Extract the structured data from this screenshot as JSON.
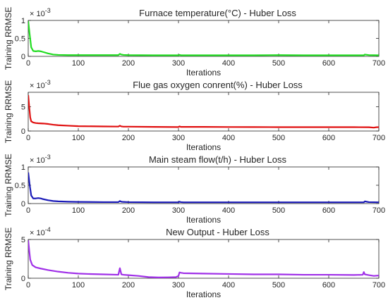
{
  "chart_data": [
    {
      "type": "line",
      "title": "Furnace temperature(°C) - Huber Loss",
      "xlabel": "Iterations",
      "ylabel": "Training RRMSE",
      "y_multiplier_base": "× 10",
      "y_multiplier_exp": "-3",
      "xlim": [
        0,
        700
      ],
      "ylim": [
        0,
        1
      ],
      "x_ticks": [
        "0",
        "100",
        "200",
        "300",
        "400",
        "500",
        "600",
        "700"
      ],
      "y_ticks": [
        "0",
        "0.5",
        "1"
      ],
      "series_color": "#22dd22",
      "x": [
        0,
        3,
        6,
        10,
        15,
        20,
        25,
        30,
        40,
        50,
        60,
        80,
        100,
        150,
        180,
        183,
        186,
        190,
        200,
        250,
        300,
        302,
        305,
        310,
        350,
        400,
        450,
        500,
        550,
        600,
        650,
        670,
        672,
        680,
        700
      ],
      "y": [
        0.98,
        0.6,
        0.25,
        0.15,
        0.14,
        0.15,
        0.14,
        0.12,
        0.08,
        0.05,
        0.04,
        0.035,
        0.035,
        0.035,
        0.035,
        0.07,
        0.05,
        0.04,
        0.035,
        0.03,
        0.03,
        0.04,
        0.03,
        0.03,
        0.03,
        0.03,
        0.03,
        0.035,
        0.03,
        0.03,
        0.03,
        0.03,
        0.05,
        0.035,
        0.03
      ]
    },
    {
      "type": "line",
      "title": "Flue gas oxygen conrent(%) - Huber Loss",
      "xlabel": "Iterations",
      "ylabel": "Training RRMSE",
      "y_multiplier_base": "× 10",
      "y_multiplier_exp": "-3",
      "xlim": [
        0,
        700
      ],
      "ylim": [
        0,
        8
      ],
      "x_ticks": [
        "0",
        "100",
        "200",
        "300",
        "400",
        "500",
        "600",
        "700"
      ],
      "y_ticks": [
        "0",
        "5"
      ],
      "series_color": "#e01010",
      "x": [
        0,
        2,
        4,
        6,
        10,
        15,
        20,
        30,
        40,
        50,
        60,
        80,
        100,
        150,
        180,
        183,
        186,
        190,
        200,
        250,
        300,
        302,
        305,
        310,
        350,
        400,
        450,
        500,
        550,
        600,
        650,
        680,
        690,
        695,
        700
      ],
      "y": [
        7.4,
        5.0,
        2.8,
        2.0,
        1.75,
        1.65,
        1.6,
        1.55,
        1.45,
        1.3,
        1.2,
        1.1,
        1.0,
        0.95,
        0.92,
        1.1,
        0.95,
        0.9,
        0.9,
        0.85,
        0.82,
        0.95,
        0.85,
        0.85,
        0.85,
        0.83,
        0.82,
        0.8,
        0.8,
        0.8,
        0.8,
        0.78,
        0.7,
        0.78,
        0.8
      ]
    },
    {
      "type": "line",
      "title": "Main steam flow(t/h) - Huber Loss",
      "xlabel": "Iterations",
      "ylabel": "Training RRMSE",
      "y_multiplier_base": "× 10",
      "y_multiplier_exp": "-3",
      "xlim": [
        0,
        700
      ],
      "ylim": [
        0,
        1
      ],
      "x_ticks": [
        "0",
        "100",
        "200",
        "300",
        "400",
        "500",
        "600",
        "700"
      ],
      "y_ticks": [
        "0",
        "0.5",
        "1"
      ],
      "series_color": "#1a1ab8",
      "x": [
        0,
        3,
        6,
        10,
        15,
        20,
        25,
        30,
        40,
        50,
        60,
        80,
        100,
        150,
        180,
        183,
        186,
        190,
        200,
        250,
        300,
        302,
        305,
        310,
        350,
        400,
        450,
        500,
        550,
        600,
        650,
        670,
        672,
        680,
        700
      ],
      "y": [
        0.85,
        0.5,
        0.22,
        0.14,
        0.14,
        0.15,
        0.14,
        0.12,
        0.09,
        0.07,
        0.06,
        0.05,
        0.045,
        0.04,
        0.04,
        0.07,
        0.05,
        0.045,
        0.04,
        0.035,
        0.035,
        0.05,
        0.04,
        0.035,
        0.035,
        0.035,
        0.035,
        0.035,
        0.035,
        0.035,
        0.035,
        0.035,
        0.06,
        0.04,
        0.035
      ]
    },
    {
      "type": "line",
      "title": "New Output - Huber Loss",
      "xlabel": "Iterations",
      "ylabel": "Training RRMSE",
      "y_multiplier_base": "× 10",
      "y_multiplier_exp": "-4",
      "xlim": [
        0,
        700
      ],
      "ylim": [
        0,
        5
      ],
      "x_ticks": [
        "0",
        "100",
        "200",
        "300",
        "400",
        "500",
        "600",
        "700"
      ],
      "y_ticks": [
        "0",
        "5"
      ],
      "series_color": "#a030e8",
      "x": [
        0,
        2,
        4,
        8,
        15,
        25,
        40,
        60,
        80,
        100,
        120,
        150,
        180,
        183,
        186,
        190,
        200,
        220,
        240,
        260,
        280,
        295,
        300,
        302,
        305,
        310,
        350,
        400,
        450,
        500,
        550,
        600,
        650,
        668,
        670,
        672,
        680,
        690,
        700
      ],
      "y": [
        4.9,
        3.6,
        2.4,
        1.7,
        1.4,
        1.25,
        1.05,
        0.85,
        0.7,
        0.6,
        0.55,
        0.5,
        0.45,
        1.3,
        0.5,
        0.45,
        0.4,
        0.3,
        0.15,
        0.1,
        0.12,
        0.15,
        0.3,
        0.75,
        0.7,
        0.65,
        0.6,
        0.55,
        0.5,
        0.5,
        0.45,
        0.45,
        0.42,
        0.45,
        0.8,
        0.5,
        0.4,
        0.3,
        0.35
      ]
    }
  ]
}
